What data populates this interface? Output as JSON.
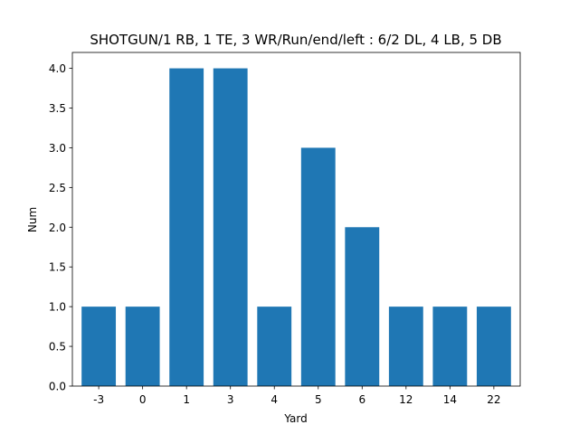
{
  "chart_data": {
    "type": "bar",
    "title": "SHOTGUN/1 RB, 1 TE, 3 WR/Run/end/left : 6/2 DL, 4 LB, 5 DB",
    "xlabel": "Yard",
    "ylabel": "Num",
    "categories": [
      "-3",
      "0",
      "1",
      "3",
      "4",
      "5",
      "6",
      "12",
      "14",
      "22"
    ],
    "values": [
      1,
      1,
      4,
      4,
      1,
      3,
      2,
      1,
      1,
      1
    ],
    "ylim": [
      0,
      4.2
    ],
    "yticks": [
      "0.0",
      "0.5",
      "1.0",
      "1.5",
      "2.0",
      "2.5",
      "3.0",
      "3.5",
      "4.0"
    ],
    "bar_color": "#1f77b4",
    "grid": false
  }
}
